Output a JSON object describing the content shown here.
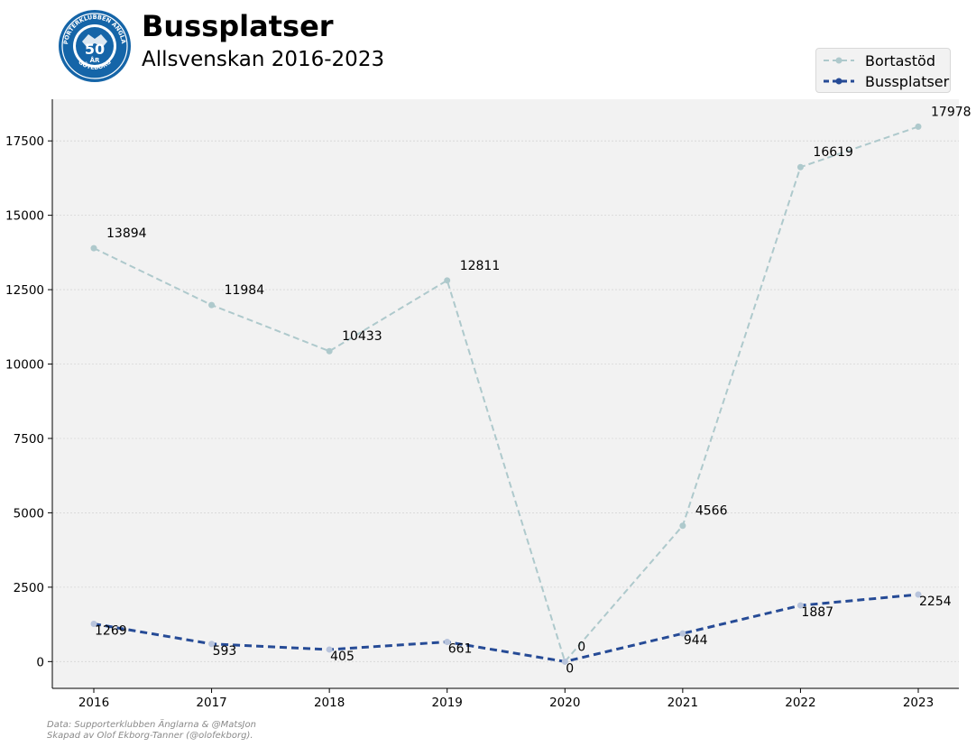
{
  "header": {
    "title": "Bussplatser",
    "subtitle": "Allsvenskan 2016-2023"
  },
  "logo": {
    "arc_top": "SUPPORTERKLUBBEN ÄNGLARNA",
    "arc_bottom": "GÖTEBORG",
    "center_number": "50",
    "center_text": "ÅR",
    "color": "#1565a8"
  },
  "colors": {
    "bortastod": "#aec9cc",
    "bussplatser": "#264b96",
    "plot_bg": "#f2f2f2"
  },
  "footer": {
    "line1": "Data: Supporterklubben Änglarna & @MatsJon",
    "line2": "Skapad av Olof Ekborg-Tanner (@olofekborg)."
  },
  "chart_data": {
    "type": "line",
    "title": "Bussplatser",
    "subtitle": "Allsvenskan 2016-2023",
    "xlabel": "",
    "ylabel": "",
    "categories": [
      "2016",
      "2017",
      "2018",
      "2019",
      "2020",
      "2021",
      "2022",
      "2023"
    ],
    "x_ticks": [
      "2016",
      "2017",
      "2018",
      "2019",
      "2020",
      "2021",
      "2022",
      "2023"
    ],
    "y_ticks": [
      "0",
      "2500",
      "5000",
      "7500",
      "10000",
      "12500",
      "15000",
      "17500"
    ],
    "ylim": [
      -900,
      18900
    ],
    "grid": true,
    "legend_position": "top-right",
    "series": [
      {
        "name": "Bortastöd",
        "values": [
          13894,
          11984,
          10433,
          12811,
          0,
          4566,
          16619,
          17978
        ],
        "labels": [
          "13894",
          "11984",
          "10433",
          "12811",
          "0",
          "4566",
          "16619",
          "17978"
        ],
        "style": "dashed",
        "color": "#aec9cc"
      },
      {
        "name": "Bussplatser",
        "values": [
          1269,
          593,
          405,
          661,
          0,
          944,
          1887,
          2254
        ],
        "labels": [
          "1269",
          "593",
          "405",
          "661",
          "0",
          "944",
          "1887",
          "2254"
        ],
        "style": "dashed-thick",
        "color": "#264b96"
      }
    ]
  }
}
